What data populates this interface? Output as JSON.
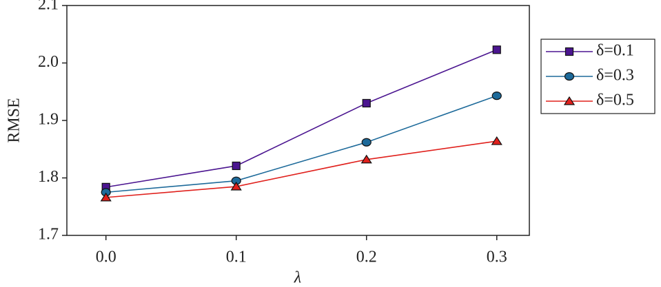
{
  "chart_data": {
    "type": "line",
    "x_label": "λ",
    "y_label": "RMSE",
    "x": [
      0,
      0.1,
      0.2,
      0.3
    ],
    "xlim": [
      -0.03,
      0.325
    ],
    "xticks": [
      {
        "value": 0,
        "label": "0.0"
      },
      0.1,
      0.2,
      0.3
    ],
    "ylim": [
      1.7,
      2.1
    ],
    "yticks": [
      1.7,
      1.8,
      1.9,
      {
        "value": 2,
        "label": "2.0"
      },
      2.1
    ],
    "grid": false,
    "legend": "right",
    "series": [
      {
        "name": "δ=0.1",
        "color": "#4b1590",
        "marker": "square",
        "values": [
          1.784,
          1.821,
          1.93,
          2.023
        ]
      },
      {
        "name": "δ=0.3",
        "color": "#1d6a9a",
        "marker": "circle",
        "values": [
          1.775,
          1.795,
          1.862,
          1.943
        ]
      },
      {
        "name": "δ=0.5",
        "color": "#e0201c",
        "marker": "triangle",
        "values": [
          1.766,
          1.785,
          1.832,
          1.864
        ]
      }
    ]
  }
}
